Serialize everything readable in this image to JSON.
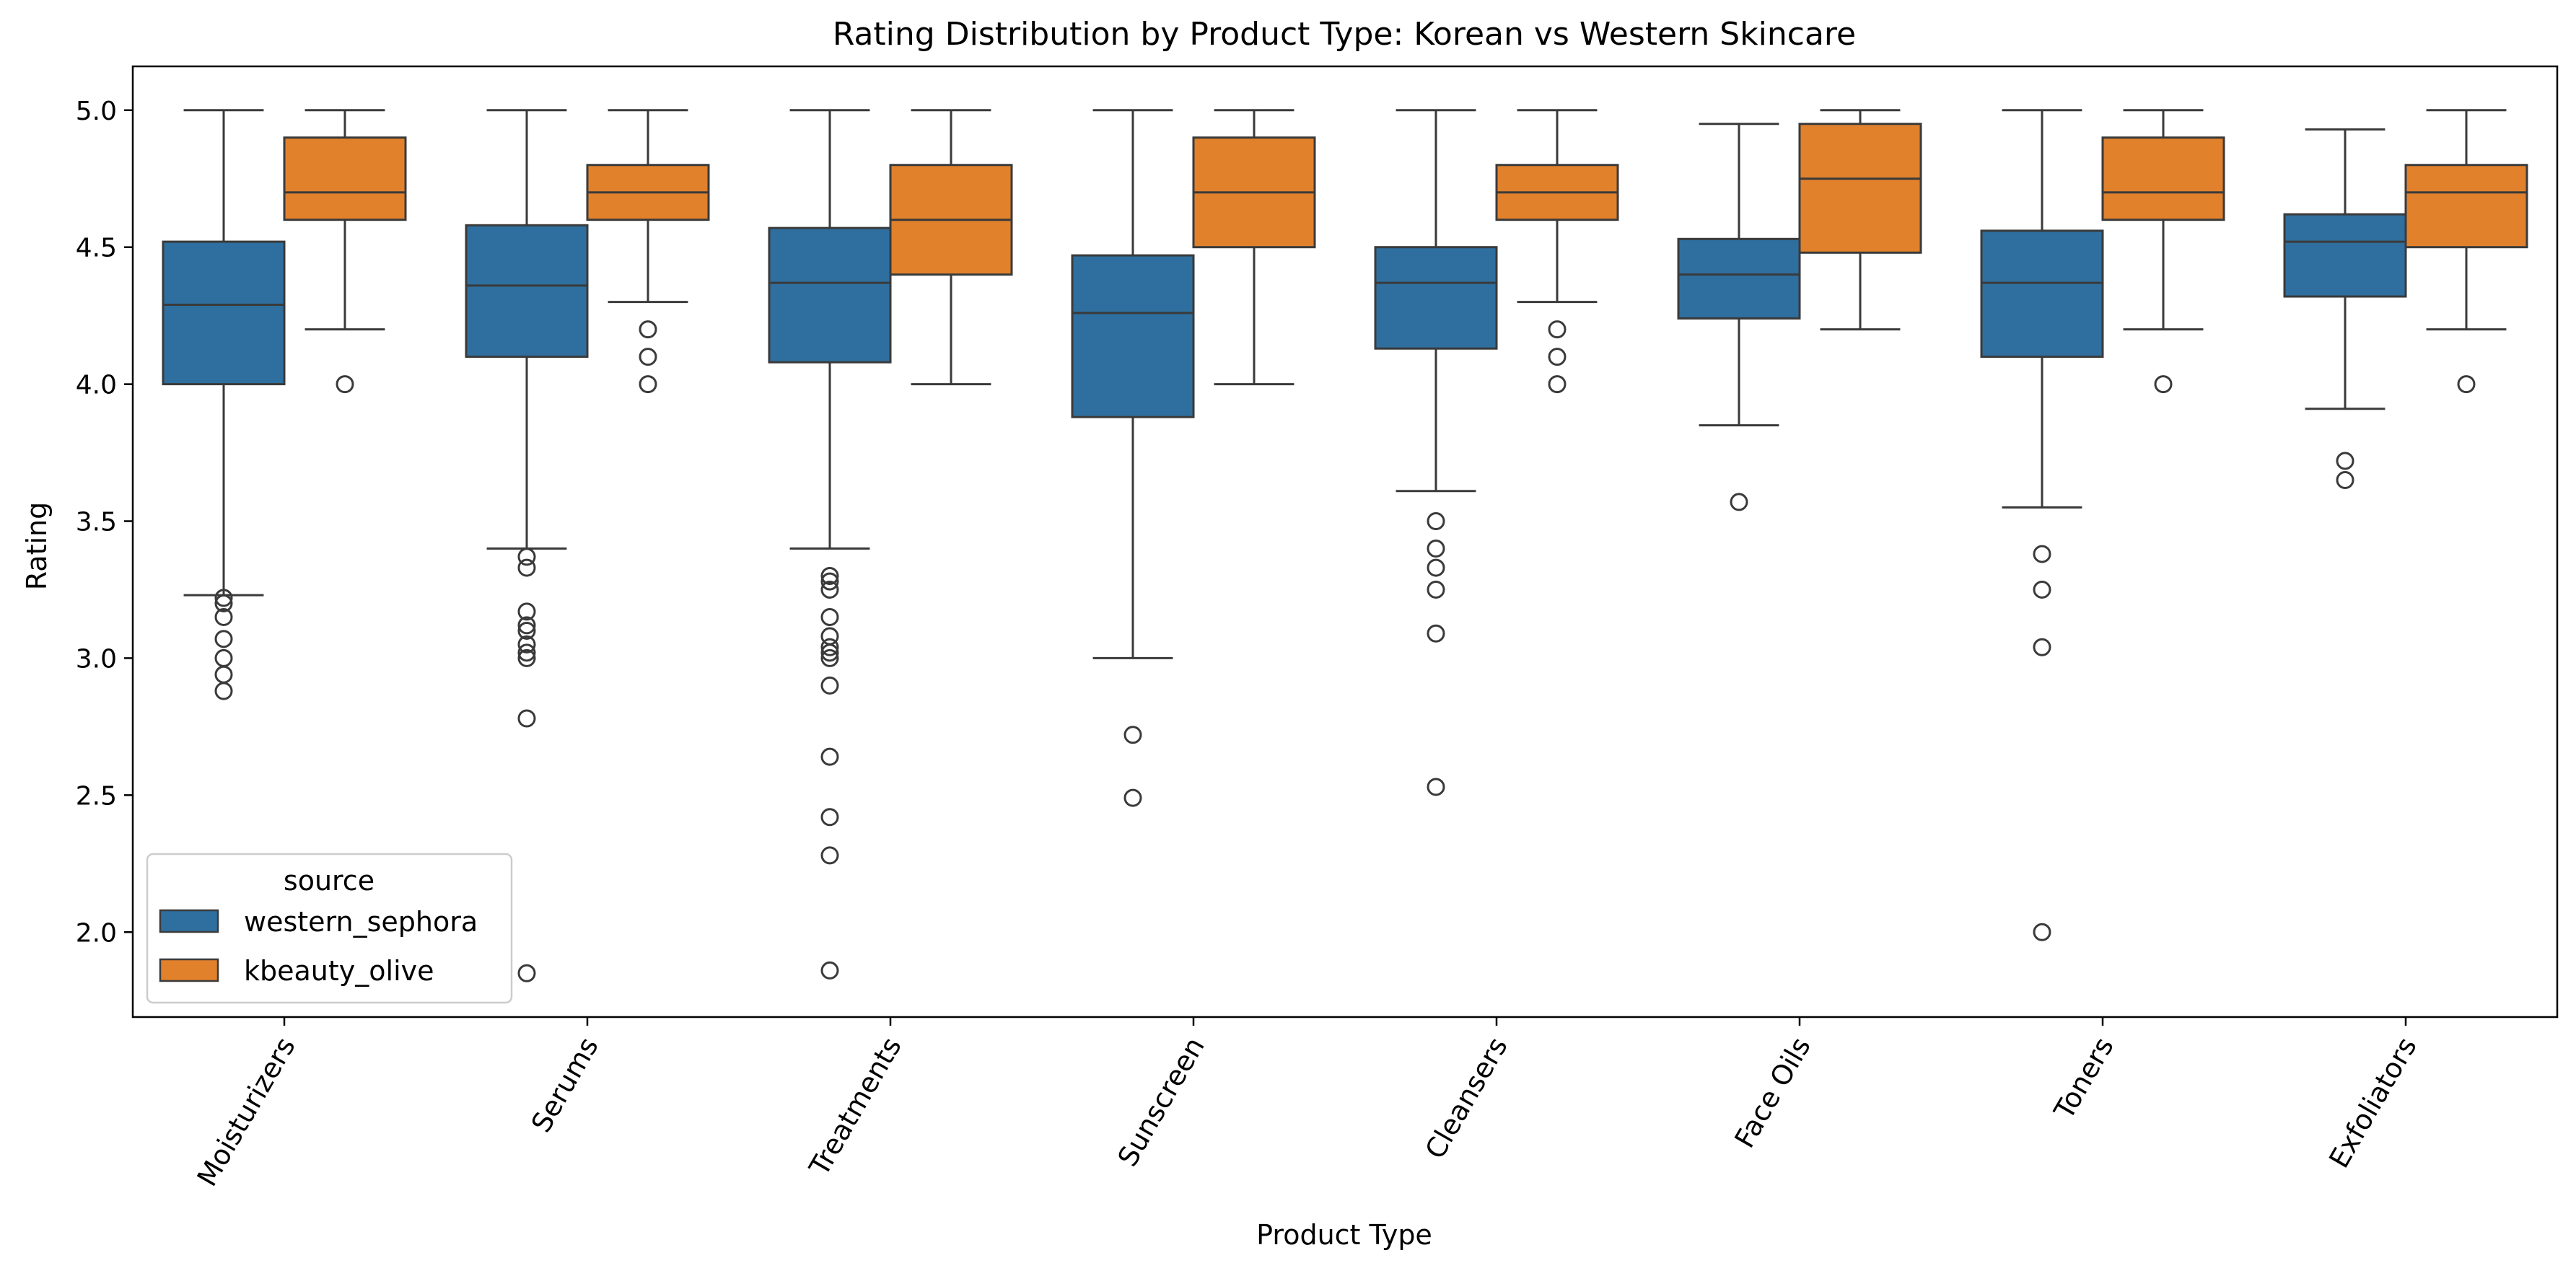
{
  "chart_data": {
    "type": "box",
    "title": "Rating Distribution by Product Type: Korean vs Western Skincare",
    "xlabel": "Product Type",
    "ylabel": "Rating",
    "ylim": [
      1.69,
      5.16
    ],
    "yticks": [
      2.0,
      2.5,
      3.0,
      3.5,
      4.0,
      4.5,
      5.0
    ],
    "ytick_labels": [
      "2.0",
      "2.5",
      "3.0",
      "3.5",
      "4.0",
      "4.5",
      "5.0"
    ],
    "categories": [
      "Moisturizers",
      "Serums",
      "Treatments",
      "Sunscreen",
      "Cleansers",
      "Face Oils",
      "Toners",
      "Exfoliators"
    ],
    "x_tick_rotation_deg": 60,
    "grid": false,
    "legend": {
      "title": "source",
      "position": "lower-left"
    },
    "series": [
      {
        "name": "western_sephora",
        "color": "#2e6f9f",
        "boxes": [
          {
            "whislo": 3.23,
            "q1": 4.0,
            "med": 4.29,
            "q3": 4.52,
            "whishi": 5.0,
            "fliers": [
              3.22,
              3.2,
              3.15,
              3.07,
              3.0,
              2.94,
              2.88
            ]
          },
          {
            "whislo": 3.4,
            "q1": 4.1,
            "med": 4.36,
            "q3": 4.58,
            "whishi": 5.0,
            "fliers": [
              3.37,
              3.33,
              3.17,
              3.12,
              3.1,
              3.05,
              3.02,
              3.0,
              2.78,
              1.85
            ]
          },
          {
            "whislo": 3.4,
            "q1": 4.08,
            "med": 4.37,
            "q3": 4.57,
            "whishi": 5.0,
            "fliers": [
              3.3,
              3.28,
              3.25,
              3.15,
              3.08,
              3.04,
              3.02,
              3.0,
              2.9,
              2.64,
              2.42,
              2.28,
              1.86
            ]
          },
          {
            "whislo": 3.0,
            "q1": 3.88,
            "med": 4.26,
            "q3": 4.47,
            "whishi": 5.0,
            "fliers": [
              2.72,
              2.49
            ]
          },
          {
            "whislo": 3.61,
            "q1": 4.13,
            "med": 4.37,
            "q3": 4.5,
            "whishi": 5.0,
            "fliers": [
              3.5,
              3.4,
              3.33,
              3.25,
              3.09,
              2.53
            ]
          },
          {
            "whislo": 3.85,
            "q1": 4.24,
            "med": 4.4,
            "q3": 4.53,
            "whishi": 4.95,
            "fliers": [
              3.57
            ]
          },
          {
            "whislo": 3.55,
            "q1": 4.1,
            "med": 4.37,
            "q3": 4.56,
            "whishi": 5.0,
            "fliers": [
              3.38,
              3.25,
              3.04,
              2.0
            ]
          },
          {
            "whislo": 3.91,
            "q1": 4.32,
            "med": 4.52,
            "q3": 4.62,
            "whishi": 4.93,
            "fliers": [
              3.72,
              3.65
            ]
          }
        ]
      },
      {
        "name": "kbeauty_olive",
        "color": "#e1812c",
        "boxes": [
          {
            "whislo": 4.2,
            "q1": 4.6,
            "med": 4.7,
            "q3": 4.9,
            "whishi": 5.0,
            "fliers": [
              4.0
            ]
          },
          {
            "whislo": 4.3,
            "q1": 4.6,
            "med": 4.7,
            "q3": 4.8,
            "whishi": 5.0,
            "fliers": [
              4.2,
              4.1,
              4.0
            ]
          },
          {
            "whislo": 4.0,
            "q1": 4.4,
            "med": 4.6,
            "q3": 4.8,
            "whishi": 5.0,
            "fliers": []
          },
          {
            "whislo": 4.0,
            "q1": 4.5,
            "med": 4.7,
            "q3": 4.9,
            "whishi": 5.0,
            "fliers": []
          },
          {
            "whislo": 4.3,
            "q1": 4.6,
            "med": 4.7,
            "q3": 4.8,
            "whishi": 5.0,
            "fliers": [
              4.2,
              4.1,
              4.0
            ]
          },
          {
            "whislo": 4.2,
            "q1": 4.48,
            "med": 4.75,
            "q3": 4.95,
            "whishi": 5.0,
            "fliers": []
          },
          {
            "whislo": 4.2,
            "q1": 4.6,
            "med": 4.7,
            "q3": 4.9,
            "whishi": 5.0,
            "fliers": [
              4.0
            ]
          },
          {
            "whislo": 4.2,
            "q1": 4.5,
            "med": 4.7,
            "q3": 4.8,
            "whishi": 5.0,
            "fliers": [
              4.0
            ]
          }
        ]
      }
    ]
  }
}
